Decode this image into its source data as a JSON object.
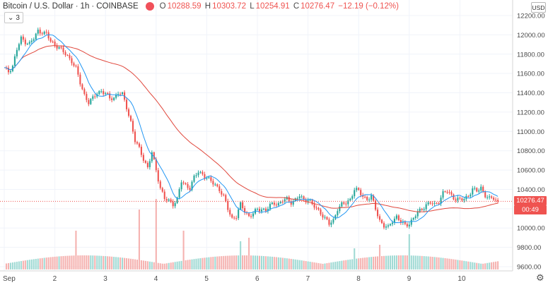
{
  "legend": {
    "symbol": "Bitcoin / U.S. Dollar",
    "interval": "1h",
    "exchange": "COINBASE",
    "open_label": "O",
    "open": "10288.59",
    "high_label": "H",
    "high": "10303.72",
    "low_label": "L",
    "low": "10254.91",
    "close_label": "C",
    "close": "10276.47",
    "change": "−12.19 (−0.12%)",
    "indicator_count": "3"
  },
  "currency_button": "USD",
  "last_price_tag": "10276.47",
  "countdown_tag": "00:49",
  "colors": {
    "up": "#26a69a",
    "down": "#ef5350",
    "ma_fast": "#2196f3",
    "ma_slow": "#e0473c",
    "grid": "#f0f3fa",
    "axis_text": "#4a4a4a"
  },
  "chart_data": {
    "type": "candlestick",
    "ylim": [
      9600,
      12200
    ],
    "y_ticks": [
      "12200.00",
      "12000.00",
      "11800.00",
      "11600.00",
      "11400.00",
      "11200.00",
      "11000.00",
      "10800.00",
      "10600.00",
      "10400.00",
      "10200.00",
      "10000.00",
      "9800.00",
      "9600.00"
    ],
    "x_ticks": [
      "Sep",
      "2",
      "3",
      "4",
      "5",
      "6",
      "7",
      "8",
      "9",
      "10"
    ],
    "x_tick_hours": [
      0,
      24,
      48,
      72,
      96,
      120,
      144,
      168,
      192,
      216
    ],
    "hours_total": 240,
    "last_price": 10276.47,
    "series_close": [
      {
        "h": 0,
        "p": 11650
      },
      {
        "h": 2,
        "p": 11620
      },
      {
        "h": 4,
        "p": 11680
      },
      {
        "h": 6,
        "p": 11850
      },
      {
        "h": 8,
        "p": 11960
      },
      {
        "h": 10,
        "p": 11930
      },
      {
        "h": 12,
        "p": 11910
      },
      {
        "h": 14,
        "p": 11960
      },
      {
        "h": 16,
        "p": 12040
      },
      {
        "h": 18,
        "p": 12030
      },
      {
        "h": 20,
        "p": 12010
      },
      {
        "h": 22,
        "p": 11930
      },
      {
        "h": 24,
        "p": 11900
      },
      {
        "h": 26,
        "p": 11870
      },
      {
        "h": 28,
        "p": 11820
      },
      {
        "h": 30,
        "p": 11780
      },
      {
        "h": 32,
        "p": 11730
      },
      {
        "h": 34,
        "p": 11650
      },
      {
        "h": 36,
        "p": 11500
      },
      {
        "h": 38,
        "p": 11380
      },
      {
        "h": 40,
        "p": 11300
      },
      {
        "h": 42,
        "p": 11340
      },
      {
        "h": 44,
        "p": 11400
      },
      {
        "h": 46,
        "p": 11420
      },
      {
        "h": 48,
        "p": 11390
      },
      {
        "h": 50,
        "p": 11340
      },
      {
        "h": 52,
        "p": 11350
      },
      {
        "h": 54,
        "p": 11400
      },
      {
        "h": 56,
        "p": 11380
      },
      {
        "h": 58,
        "p": 11250
      },
      {
        "h": 60,
        "p": 11100
      },
      {
        "h": 62,
        "p": 10900
      },
      {
        "h": 64,
        "p": 10820
      },
      {
        "h": 66,
        "p": 10720
      },
      {
        "h": 68,
        "p": 10620
      },
      {
        "h": 70,
        "p": 10780
      },
      {
        "h": 72,
        "p": 10600
      },
      {
        "h": 74,
        "p": 10420
      },
      {
        "h": 76,
        "p": 10300
      },
      {
        "h": 78,
        "p": 10280
      },
      {
        "h": 80,
        "p": 10250
      },
      {
        "h": 82,
        "p": 10300
      },
      {
        "h": 84,
        "p": 10480
      },
      {
        "h": 86,
        "p": 10440
      },
      {
        "h": 88,
        "p": 10420
      },
      {
        "h": 90,
        "p": 10520
      },
      {
        "h": 92,
        "p": 10580
      },
      {
        "h": 94,
        "p": 10560
      },
      {
        "h": 96,
        "p": 10520
      },
      {
        "h": 98,
        "p": 10480
      },
      {
        "h": 100,
        "p": 10450
      },
      {
        "h": 102,
        "p": 10400
      },
      {
        "h": 104,
        "p": 10320
      },
      {
        "h": 106,
        "p": 10200
      },
      {
        "h": 108,
        "p": 10100
      },
      {
        "h": 110,
        "p": 10120
      },
      {
        "h": 112,
        "p": 10240
      },
      {
        "h": 114,
        "p": 10180
      },
      {
        "h": 116,
        "p": 10120
      },
      {
        "h": 118,
        "p": 10150
      },
      {
        "h": 120,
        "p": 10190
      },
      {
        "h": 122,
        "p": 10200
      },
      {
        "h": 124,
        "p": 10180
      },
      {
        "h": 126,
        "p": 10230
      },
      {
        "h": 128,
        "p": 10260
      },
      {
        "h": 130,
        "p": 10250
      },
      {
        "h": 132,
        "p": 10280
      },
      {
        "h": 134,
        "p": 10300
      },
      {
        "h": 136,
        "p": 10270
      },
      {
        "h": 138,
        "p": 10290
      },
      {
        "h": 140,
        "p": 10330
      },
      {
        "h": 142,
        "p": 10290
      },
      {
        "h": 144,
        "p": 10300
      },
      {
        "h": 146,
        "p": 10240
      },
      {
        "h": 148,
        "p": 10200
      },
      {
        "h": 150,
        "p": 10160
      },
      {
        "h": 152,
        "p": 10100
      },
      {
        "h": 154,
        "p": 10040
      },
      {
        "h": 156,
        "p": 10080
      },
      {
        "h": 158,
        "p": 10200
      },
      {
        "h": 160,
        "p": 10240
      },
      {
        "h": 162,
        "p": 10260
      },
      {
        "h": 164,
        "p": 10300
      },
      {
        "h": 166,
        "p": 10400
      },
      {
        "h": 168,
        "p": 10380
      },
      {
        "h": 170,
        "p": 10330
      },
      {
        "h": 172,
        "p": 10300
      },
      {
        "h": 174,
        "p": 10320
      },
      {
        "h": 176,
        "p": 10200
      },
      {
        "h": 178,
        "p": 10080
      },
      {
        "h": 180,
        "p": 10020
      },
      {
        "h": 182,
        "p": 10000
      },
      {
        "h": 184,
        "p": 10080
      },
      {
        "h": 186,
        "p": 10120
      },
      {
        "h": 188,
        "p": 10060
      },
      {
        "h": 190,
        "p": 10030
      },
      {
        "h": 192,
        "p": 10050
      },
      {
        "h": 194,
        "p": 10100
      },
      {
        "h": 196,
        "p": 10160
      },
      {
        "h": 198,
        "p": 10200
      },
      {
        "h": 200,
        "p": 10240
      },
      {
        "h": 202,
        "p": 10260
      },
      {
        "h": 204,
        "p": 10240
      },
      {
        "h": 206,
        "p": 10280
      },
      {
        "h": 208,
        "p": 10360
      },
      {
        "h": 210,
        "p": 10380
      },
      {
        "h": 212,
        "p": 10340
      },
      {
        "h": 214,
        "p": 10300
      },
      {
        "h": 216,
        "p": 10290
      },
      {
        "h": 218,
        "p": 10300
      },
      {
        "h": 220,
        "p": 10340
      },
      {
        "h": 222,
        "p": 10400
      },
      {
        "h": 224,
        "p": 10380
      },
      {
        "h": 226,
        "p": 10420
      },
      {
        "h": 228,
        "p": 10340
      },
      {
        "h": 230,
        "p": 10300
      },
      {
        "h": 232,
        "p": 10310
      },
      {
        "h": 234,
        "p": 10276
      }
    ],
    "volume_spikes": [
      {
        "h": 34,
        "v": 0.55
      },
      {
        "h": 64,
        "v": 0.85
      },
      {
        "h": 72,
        "v": 1.0
      },
      {
        "h": 85,
        "v": 0.55
      },
      {
        "h": 112,
        "v": 0.4
      },
      {
        "h": 116,
        "v": 0.45
      },
      {
        "h": 192,
        "v": 0.5
      },
      {
        "h": 166,
        "v": 0.3
      },
      {
        "h": 178,
        "v": 0.35
      }
    ]
  }
}
